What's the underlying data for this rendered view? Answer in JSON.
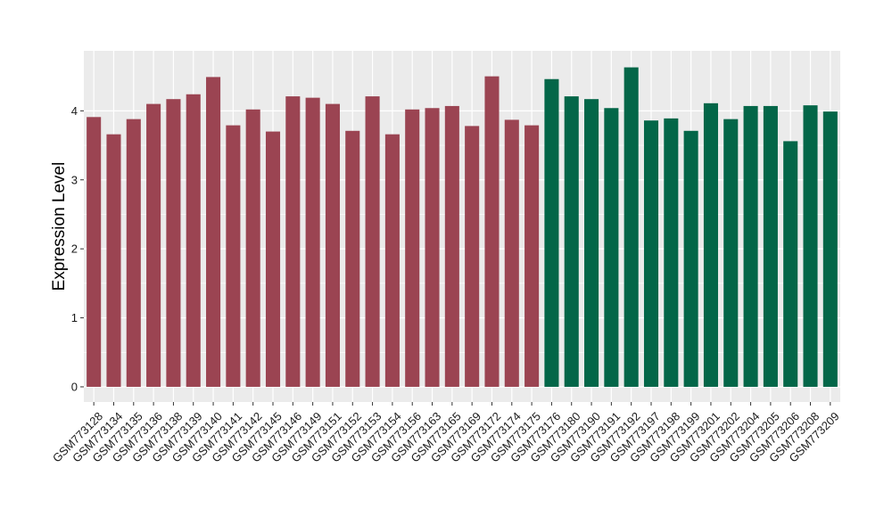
{
  "chart_data": {
    "type": "bar",
    "title": "",
    "xlabel": "",
    "ylabel": "Expression Level",
    "ylim": [
      -0.22,
      4.87
    ],
    "yticks": [
      0,
      1,
      2,
      3,
      4
    ],
    "grid": true,
    "legend": "none",
    "background_color": "#EBEBEB",
    "grid_color": "#FFFFFF",
    "categories": [
      "GSM773128",
      "GSM773134",
      "GSM773135",
      "GSM773136",
      "GSM773138",
      "GSM773139",
      "GSM773140",
      "GSM773141",
      "GSM773142",
      "GSM773145",
      "GSM773146",
      "GSM773149",
      "GSM773151",
      "GSM773152",
      "GSM773153",
      "GSM773154",
      "GSM773156",
      "GSM773163",
      "GSM773165",
      "GSM773169",
      "GSM773172",
      "GSM773174",
      "GSM773175",
      "GSM773176",
      "GSM773180",
      "GSM773190",
      "GSM773191",
      "GSM773192",
      "GSM773197",
      "GSM773198",
      "GSM773199",
      "GSM773201",
      "GSM773202",
      "GSM773204",
      "GSM773205",
      "GSM773206",
      "GSM773208",
      "GSM773209"
    ],
    "values": [
      3.91,
      3.66,
      3.88,
      4.1,
      4.17,
      4.24,
      4.49,
      3.79,
      4.02,
      3.7,
      4.21,
      4.19,
      4.1,
      3.71,
      4.21,
      3.66,
      4.02,
      4.04,
      4.07,
      3.78,
      4.5,
      3.87,
      3.79,
      4.46,
      4.21,
      4.17,
      4.04,
      4.63,
      3.86,
      3.89,
      3.71,
      4.11,
      3.88,
      4.07,
      4.07,
      3.56,
      4.08,
      3.99
    ],
    "groups": [
      {
        "color": "#9B4452",
        "count": 23
      },
      {
        "color": "#036648",
        "count": 15
      }
    ]
  }
}
